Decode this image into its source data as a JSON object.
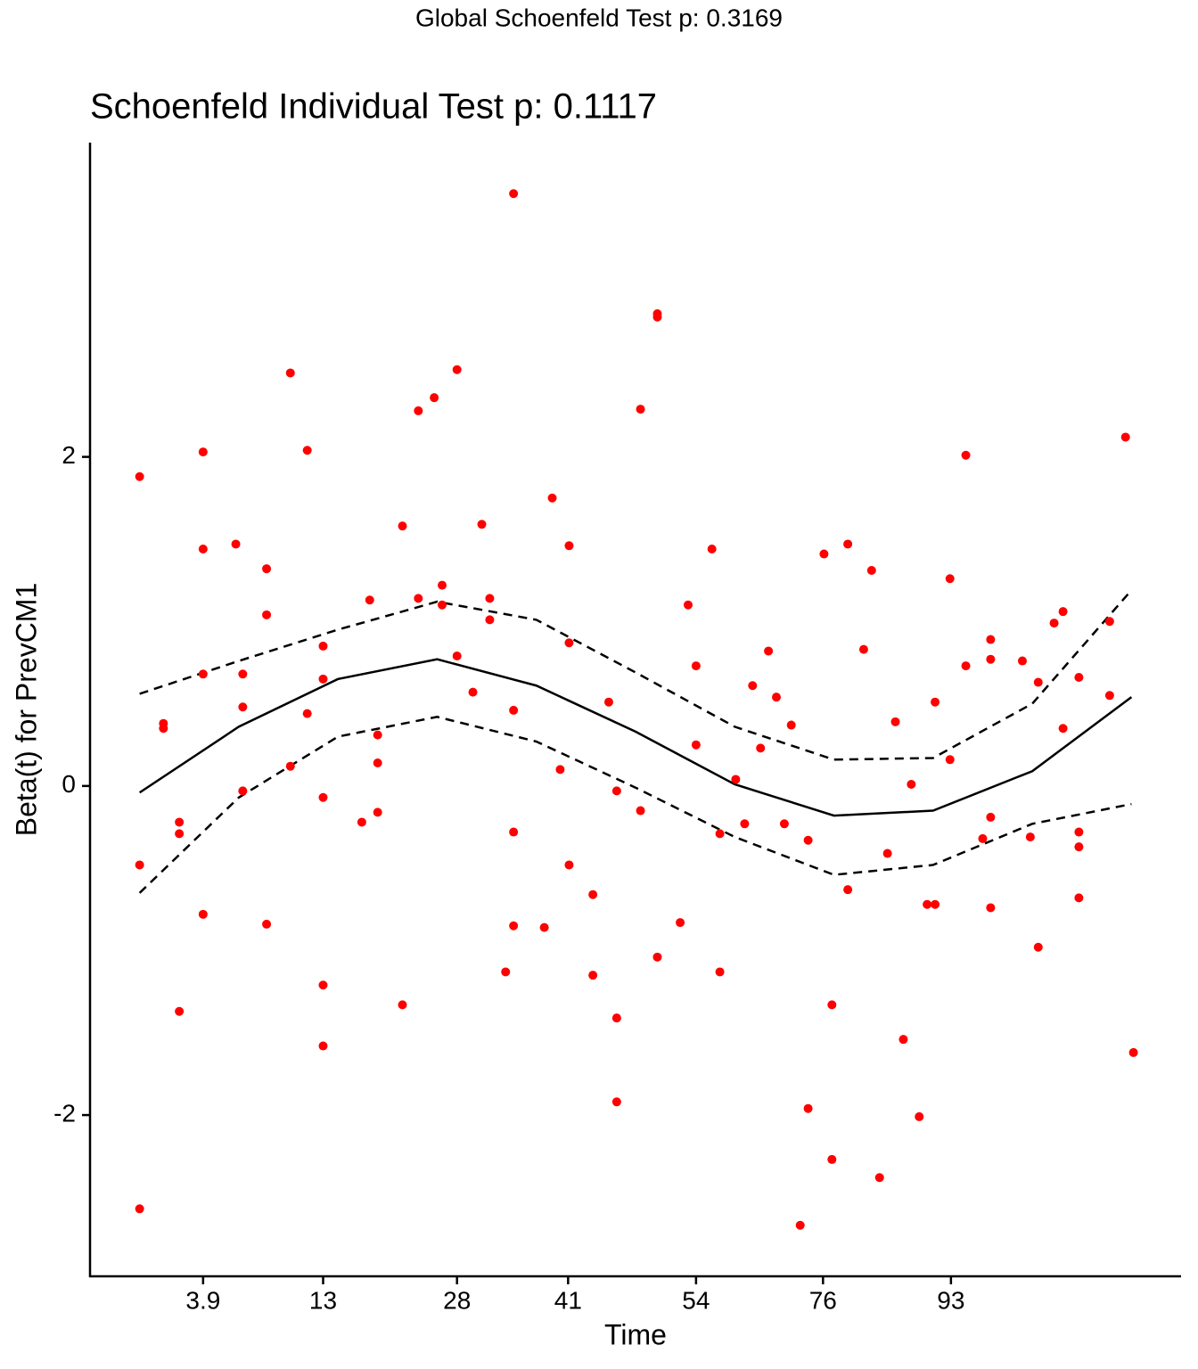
{
  "chart_data": {
    "type": "scatter",
    "suptitle": "Global Schoenfeld Test p: 0.3169",
    "title": "Schoenfeld Individual Test p: 0.1117",
    "xlabel": "Time",
    "ylabel": "Beta(t) for PrevCM1",
    "xlim": [
      -0.05,
      1.05
    ],
    "ylim": [
      -2.98,
      3.91
    ],
    "xticks": [
      {
        "value": 0.064,
        "label": "3.9"
      },
      {
        "value": 0.185,
        "label": "13"
      },
      {
        "value": 0.32,
        "label": "28"
      },
      {
        "value": 0.432,
        "label": "41"
      },
      {
        "value": 0.561,
        "label": "54"
      },
      {
        "value": 0.689,
        "label": "76"
      },
      {
        "value": 0.818,
        "label": "93"
      }
    ],
    "yticks": [
      -2,
      0,
      2
    ],
    "points": {
      "color": "#ff0000",
      "x": [
        0,
        0,
        0,
        0.024,
        0.024,
        0.04,
        0.04,
        0.04,
        0.064,
        0.064,
        0.064,
        0.064,
        0.097,
        0.104,
        0.104,
        0.104,
        0.128,
        0.128,
        0.128,
        0.152,
        0.152,
        0.169,
        0.169,
        0.185,
        0.185,
        0.185,
        0.185,
        0.185,
        0.224,
        0.232,
        0.24,
        0.24,
        0.24,
        0.265,
        0.265,
        0.281,
        0.281,
        0.297,
        0.305,
        0.305,
        0.32,
        0.32,
        0.336,
        0.345,
        0.353,
        0.353,
        0.369,
        0.377,
        0.377,
        0.377,
        0.377,
        0.408,
        0.416,
        0.424,
        0.433,
        0.433,
        0.433,
        0.457,
        0.457,
        0.473,
        0.481,
        0.481,
        0.481,
        0.505,
        0.505,
        0.522,
        0.522,
        0.522,
        0.545,
        0.553,
        0.561,
        0.561,
        0.577,
        0.585,
        0.585,
        0.601,
        0.61,
        0.618,
        0.626,
        0.634,
        0.642,
        0.65,
        0.657,
        0.674,
        0.674,
        0.666,
        0.69,
        0.698,
        0.698,
        0.714,
        0.714,
        0.73,
        0.738,
        0.746,
        0.754,
        0.762,
        0.77,
        0.778,
        0.786,
        0.794,
        0.802,
        0.802,
        0.817,
        0.817,
        0.833,
        0.833,
        0.85,
        0.858,
        0.858,
        0.858,
        0.858,
        0.89,
        0.898,
        0.906,
        0.906,
        0.922,
        0.931,
        0.931,
        0.947,
        0.947,
        0.947,
        0.947,
        0.978,
        0.978,
        0.994,
        1.002
      ],
      "values": [
        1.88,
        -0.48,
        -2.57,
        0.38,
        0.35,
        -0.22,
        -0.29,
        -1.37,
        2.03,
        1.44,
        0.68,
        -0.78,
        1.47,
        0.68,
        0.48,
        -0.03,
        1.32,
        1.04,
        -0.84,
        2.51,
        0.12,
        2.04,
        0.44,
        0.85,
        0.65,
        -0.07,
        -1.21,
        -1.58,
        -0.22,
        1.13,
        0.31,
        0.14,
        -0.16,
        1.58,
        -1.33,
        2.28,
        1.14,
        2.36,
        1.22,
        1.1,
        2.53,
        0.79,
        0.57,
        1.59,
        1.14,
        1.01,
        -1.13,
        3.6,
        0.46,
        -0.28,
        -0.85,
        -0.86,
        1.75,
        0.1,
        1.46,
        0.87,
        -0.48,
        -0.66,
        -1.15,
        0.51,
        -0.03,
        -1.41,
        -1.92,
        2.29,
        -0.15,
        2.87,
        2.85,
        -1.04,
        -0.83,
        1.1,
        0.73,
        0.25,
        1.44,
        -0.29,
        -1.13,
        0.04,
        -0.23,
        0.61,
        0.23,
        0.82,
        0.54,
        -0.23,
        0.37,
        -0.33,
        -1.96,
        -2.67,
        1.41,
        -1.33,
        -2.27,
        1.47,
        -0.63,
        0.83,
        1.31,
        -2.38,
        -0.41,
        0.39,
        -1.54,
        0.01,
        -2.01,
        -0.72,
        -0.72,
        0.51,
        1.26,
        0.16,
        2.01,
        0.73,
        -0.32,
        0.89,
        0.77,
        -0.19,
        -0.74,
        0.76,
        -0.31,
        0.63,
        -0.98,
        0.99,
        1.06,
        0.35,
        0.66,
        -0.28,
        -0.37,
        -0.68,
        1,
        0.55,
        2.12,
        -1.62
      ]
    },
    "curve_x": [
      0,
      0.1,
      0.2,
      0.3,
      0.4,
      0.5,
      0.6,
      0.7,
      0.8,
      0.9,
      1.0
    ],
    "fit": [
      -0.04,
      0.36,
      0.65,
      0.77,
      0.61,
      0.33,
      0.01,
      -0.18,
      -0.15,
      0.09,
      0.54
    ],
    "upper": [
      0.56,
      0.76,
      0.95,
      1.12,
      1.01,
      0.69,
      0.36,
      0.16,
      0.17,
      0.5,
      1.19
    ],
    "lower": [
      -0.65,
      -0.07,
      0.3,
      0.42,
      0.27,
      -0.01,
      -0.31,
      -0.54,
      -0.48,
      -0.23,
      -0.11
    ]
  }
}
